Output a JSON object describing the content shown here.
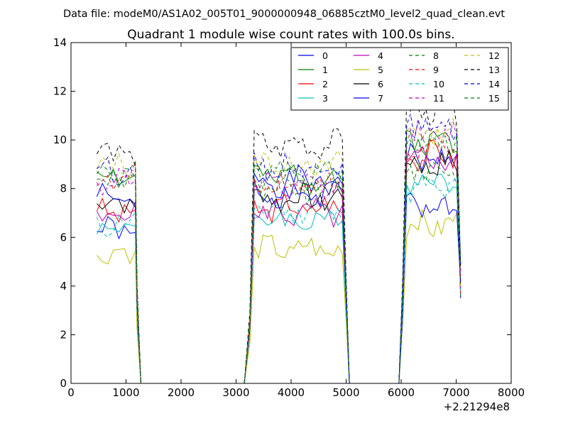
{
  "chart_data": {
    "type": "line",
    "suptitle": "Data file: modeM0/AS1A02_005T01_9000000948_06885cztM0_level2_quad_clean.evt",
    "title": "Quadrant 1 module wise count rates with 100.0s bins.",
    "xlabel": "",
    "ylabel": "",
    "x_offset_label": "+2.21294e8",
    "xlim": [
      0,
      8000
    ],
    "ylim": [
      0,
      14
    ],
    "xticks": [
      0,
      1000,
      2000,
      3000,
      4000,
      5000,
      6000,
      7000,
      8000
    ],
    "yticks": [
      0,
      2,
      4,
      6,
      8,
      10,
      12,
      14
    ],
    "grid": false,
    "legend_position": "top-right",
    "legend_columns": 4,
    "segments": [
      {
        "x": [
          470,
          570,
          670,
          770,
          870,
          970,
          1070,
          1170,
          1200
        ]
      },
      {
        "x": [
          1270,
          1370,
          1470,
          1570,
          1670,
          1770,
          1870,
          1970,
          2070,
          2170,
          2270,
          2370,
          2470,
          2570,
          2670,
          2770,
          2870,
          2970,
          3070,
          3150
        ]
      },
      {
        "x": [
          3250,
          3330,
          3410,
          3490,
          3570,
          3650,
          3730,
          3810,
          3890,
          3970,
          4050,
          4130,
          4210,
          4290,
          4370,
          4450,
          4530,
          4610,
          4690,
          4770,
          4850,
          4930,
          5000
        ]
      },
      {
        "x": [
          5060,
          5160,
          5260,
          5360,
          5460,
          5560,
          5660,
          5760,
          5860,
          5960
        ]
      },
      {
        "x": [
          6030,
          6100,
          6170,
          6240,
          6310,
          6380,
          6450,
          6520,
          6590,
          6660,
          6730,
          6800,
          6870,
          6940,
          7010,
          7080
        ]
      }
    ],
    "series": [
      {
        "name": "0",
        "color": "#0000ff",
        "dash": "solid",
        "levels": [
          6.2,
          8.3,
          9.2
        ]
      },
      {
        "name": "1",
        "color": "#008000",
        "dash": "solid",
        "levels": [
          8.6,
          8.5,
          10.0
        ]
      },
      {
        "name": "2",
        "color": "#ff0000",
        "dash": "solid",
        "levels": [
          7.1,
          7.2,
          9.4
        ]
      },
      {
        "name": "3",
        "color": "#00bfbf",
        "dash": "solid",
        "levels": [
          6.5,
          6.7,
          8.4
        ]
      },
      {
        "name": "4",
        "color": "#bf00bf",
        "dash": "solid",
        "levels": [
          6.9,
          7.0,
          9.2
        ]
      },
      {
        "name": "5",
        "color": "#bfbf00",
        "dash": "solid",
        "levels": [
          5.3,
          5.5,
          6.5
        ]
      },
      {
        "name": "6",
        "color": "#000000",
        "dash": "solid",
        "levels": [
          7.4,
          7.6,
          9.0
        ]
      },
      {
        "name": "7",
        "color": "#0000ff",
        "dash": "solid",
        "levels": [
          7.6,
          7.8,
          7.2
        ]
      },
      {
        "name": "8",
        "color": "#008000",
        "dash": "dashed",
        "levels": [
          8.6,
          7.9,
          8.8
        ]
      },
      {
        "name": "9",
        "color": "#ff0000",
        "dash": "dashed",
        "levels": [
          8.4,
          8.2,
          9.6
        ]
      },
      {
        "name": "10",
        "color": "#00bfbf",
        "dash": "dashed",
        "levels": [
          6.6,
          7.1,
          8.0
        ]
      },
      {
        "name": "11",
        "color": "#bf00bf",
        "dash": "dashed",
        "levels": [
          8.3,
          8.0,
          10.2
        ]
      },
      {
        "name": "12",
        "color": "#bfbf00",
        "dash": "dashed",
        "levels": [
          8.9,
          9.0,
          10.3
        ]
      },
      {
        "name": "13",
        "color": "#000000",
        "dash": "dashed",
        "levels": [
          9.4,
          9.8,
          11.2
        ]
      },
      {
        "name": "14",
        "color": "#0000ff",
        "dash": "dashed",
        "levels": [
          8.8,
          8.9,
          10.6
        ]
      },
      {
        "name": "15",
        "color": "#008000",
        "dash": "dashed",
        "levels": [
          8.6,
          8.6,
          10.0
        ]
      }
    ]
  }
}
